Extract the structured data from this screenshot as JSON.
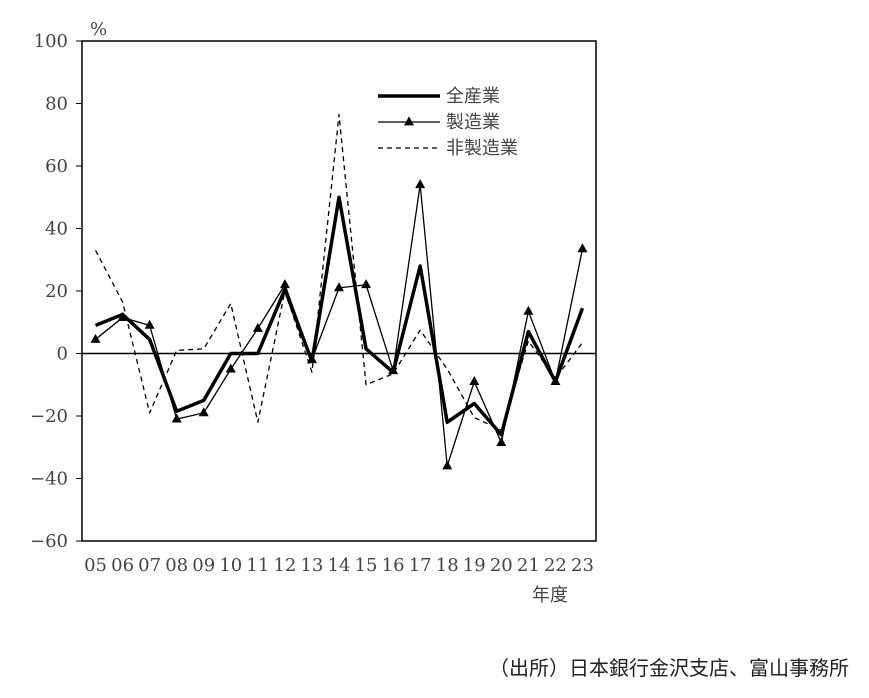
{
  "chart_data": {
    "type": "line",
    "unit_label": "%",
    "xlabel": "年度",
    "ylim": [
      -60,
      100
    ],
    "yticks": [
      100,
      80,
      60,
      40,
      20,
      0,
      -20,
      -40,
      -60
    ],
    "categories": [
      "05",
      "06",
      "07",
      "08",
      "09",
      "10",
      "11",
      "12",
      "13",
      "14",
      "15",
      "16",
      "17",
      "18",
      "19",
      "20",
      "21",
      "22",
      "23"
    ],
    "series": [
      {
        "name": "全産業",
        "style": "thick",
        "values": [
          9,
          12.5,
          4.5,
          -18.5,
          -15,
          0,
          0,
          20.5,
          -2.5,
          50,
          1.5,
          -6,
          28,
          -22,
          -16,
          -26,
          7,
          -9,
          14.5
        ]
      },
      {
        "name": "製造業",
        "style": "thin-triangle",
        "values": [
          4.5,
          11.5,
          9,
          -21,
          -19,
          -5,
          8,
          22,
          -2,
          21,
          22,
          -5.5,
          54,
          -36,
          -9,
          -28.5,
          13.5,
          -9,
          33.5
        ]
      },
      {
        "name": "非製造業",
        "style": "dashed",
        "values": [
          33,
          16.5,
          -19,
          1,
          1.5,
          16,
          -22,
          20,
          -6,
          76.5,
          -10,
          -6.5,
          7.5,
          -5,
          -20.5,
          -24.5,
          4,
          -8,
          3.5
        ]
      }
    ],
    "grid": false,
    "legend_position": "top-right"
  },
  "source": "（出所）日本銀行金沢支店、富山事務所"
}
